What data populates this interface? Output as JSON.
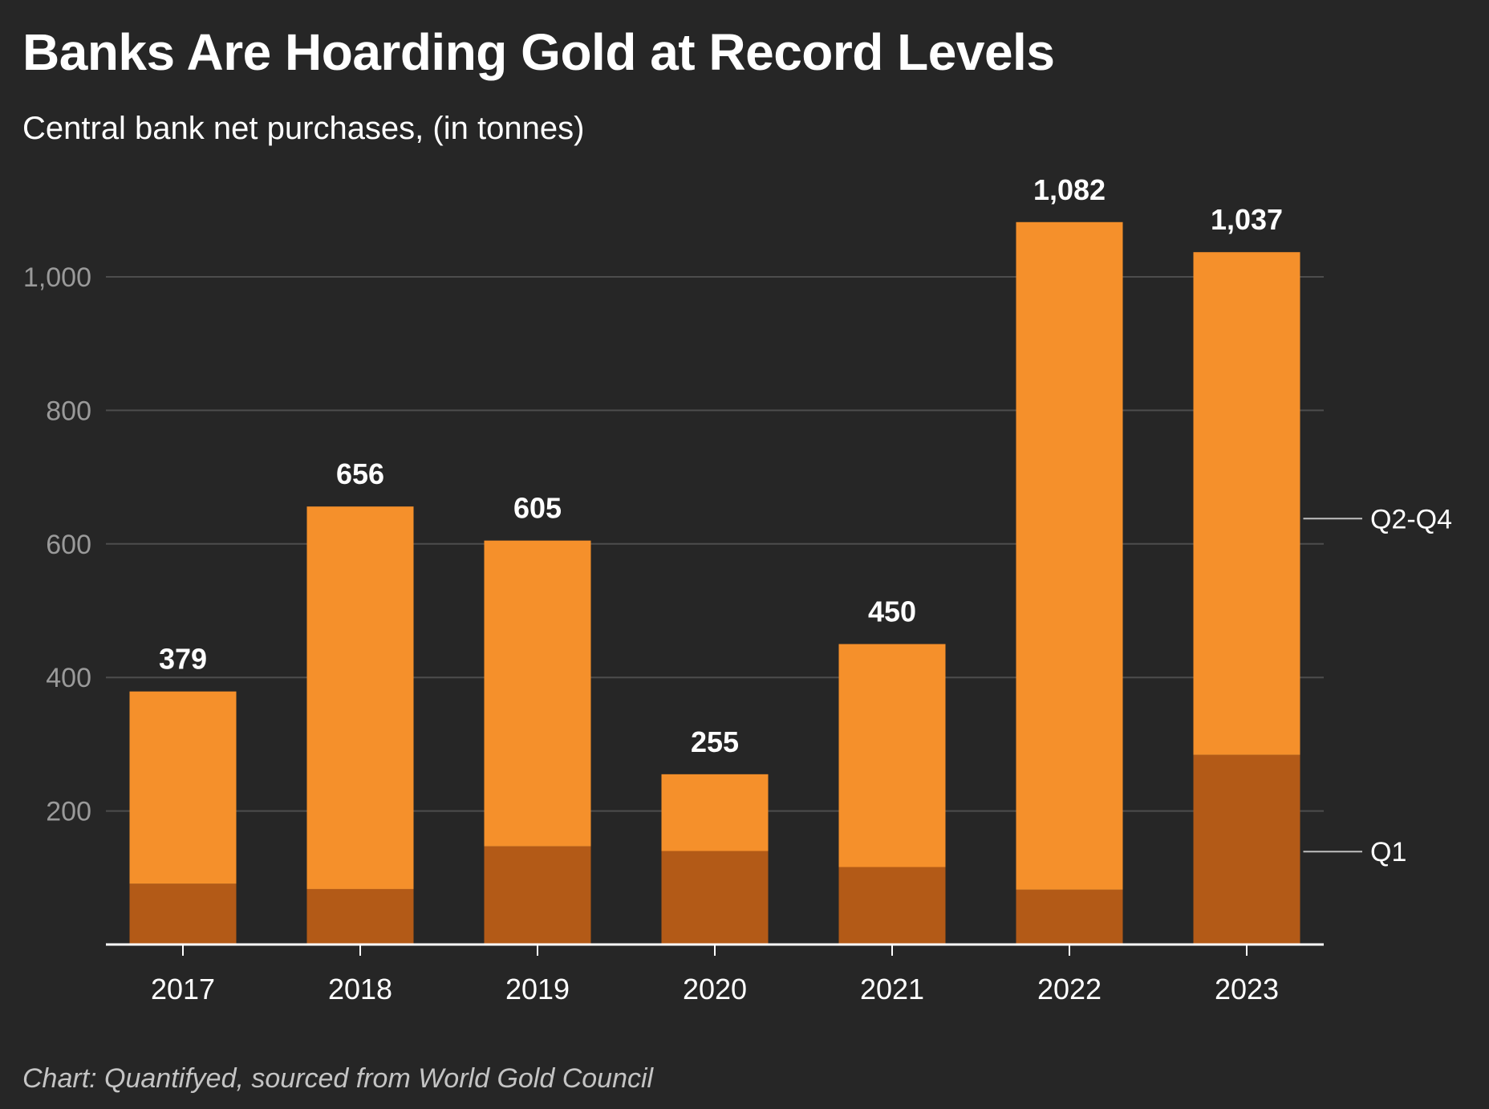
{
  "chart_data": {
    "type": "bar",
    "stacked": true,
    "title": "Banks Are Hoarding Gold at Record Levels",
    "subtitle": "Central bank net purchases, (in tonnes)",
    "source": "Chart: Quantifyed, sourced from World Gold Council",
    "categories": [
      "2017",
      "2018",
      "2019",
      "2020",
      "2021",
      "2022",
      "2023"
    ],
    "series": [
      {
        "name": "Q1",
        "values": [
          91,
          83,
          147,
          140,
          116,
          82,
          284
        ],
        "color": "#b35a17"
      },
      {
        "name": "Q2-Q4",
        "values": [
          288,
          573,
          458,
          115,
          334,
          1000,
          753
        ],
        "color": "#f5902b"
      }
    ],
    "totals": [
      379,
      656,
      605,
      255,
      450,
      1082,
      1037
    ],
    "total_labels": [
      "379",
      "656",
      "605",
      "255",
      "450",
      "1,082",
      "1,037"
    ],
    "yticks": [
      200,
      400,
      600,
      800,
      1000
    ],
    "ytick_labels": [
      "200",
      "400",
      "600",
      "800",
      "1,000"
    ],
    "ylim": [
      0,
      1130
    ],
    "grid": true,
    "legend": "right"
  }
}
